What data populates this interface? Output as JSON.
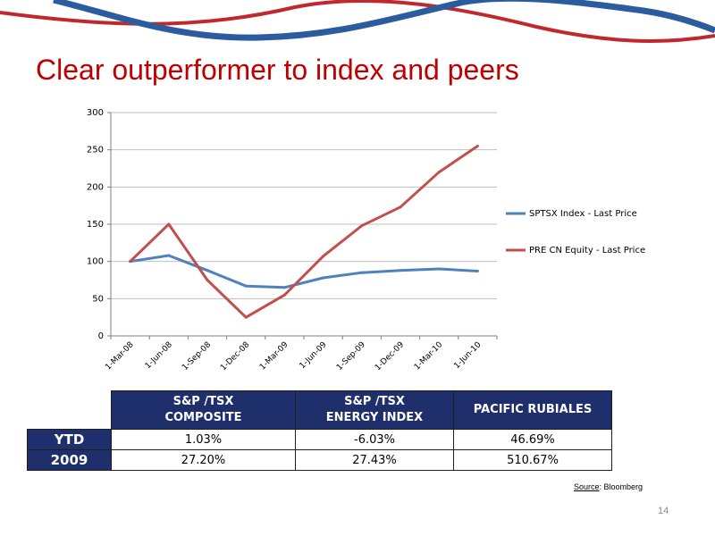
{
  "slide": {
    "title": "Clear outperformer to index and peers",
    "source_label": "Source",
    "source_value": ": Bloomberg",
    "page_number": "14"
  },
  "colors": {
    "title": "#c00000",
    "wave_red": "#c0282d",
    "wave_blue": "#2b5c9e",
    "table_header": "#1f2f6b"
  },
  "chart_data": {
    "type": "line",
    "categories": [
      "1-Mar-08",
      "1-Jun-08",
      "1-Sep-08",
      "1-Dec-08",
      "1-Mar-09",
      "1-Jun-09",
      "1-Sep-09",
      "1-Dec-09",
      "1-Mar-10",
      "1-Jun-10"
    ],
    "ylim": [
      0,
      300
    ],
    "yticks": [
      0,
      50,
      100,
      150,
      200,
      250,
      300
    ],
    "legend_position": "right",
    "series": [
      {
        "name": "SPTSX Index - Last Price",
        "color": "#4f81bd",
        "values": [
          100,
          108,
          88,
          67,
          65,
          78,
          85,
          88,
          90,
          87
        ]
      },
      {
        "name": "PRE CN Equity - Last Price",
        "color": "#c0504d",
        "values": [
          100,
          150,
          75,
          25,
          55,
          107,
          148,
          173,
          220,
          255
        ]
      }
    ]
  },
  "table": {
    "headers": [
      "S&P /TSX\nCOMPOSITE",
      "S&P /TSX\nENERGY INDEX",
      "PACIFIC RUBIALES"
    ],
    "rows": [
      {
        "label": "YTD",
        "values": [
          "1.03%",
          "-6.03%",
          "46.69%"
        ]
      },
      {
        "label": "2009",
        "values": [
          "27.20%",
          "27.43%",
          "510.67%"
        ]
      }
    ]
  }
}
